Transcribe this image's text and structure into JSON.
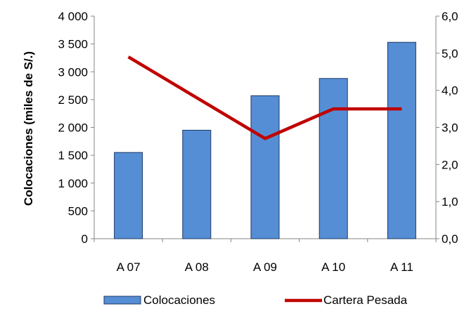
{
  "chart_data": {
    "type": "bar",
    "categories": [
      "A 07",
      "A 08",
      "A 09",
      "A 10",
      "A 11"
    ],
    "series": [
      {
        "name": "Colocaciones",
        "type": "bar",
        "axis": "left",
        "color": "#558ed5",
        "values": [
          1550,
          1950,
          2570,
          2880,
          3530
        ]
      },
      {
        "name": "Cartera Pesada",
        "type": "line",
        "axis": "right",
        "color": "#c00000",
        "values": [
          4.9,
          null,
          2.7,
          3.5,
          3.5
        ]
      }
    ],
    "ylabel": "Colocaciones (miles de S/.)",
    "ylim": [
      0,
      4000
    ],
    "y_ticks": [
      "0",
      "500",
      "1 000",
      "1 500",
      "2 000",
      "2 500",
      "3 000",
      "3 500",
      "4 000"
    ],
    "y2lim": [
      0,
      6
    ],
    "y2_ticks": [
      "0,0",
      "1,0",
      "2,0",
      "3,0",
      "4,0",
      "5,0",
      "6,0"
    ],
    "grid": false,
    "legend_position": "bottom"
  }
}
